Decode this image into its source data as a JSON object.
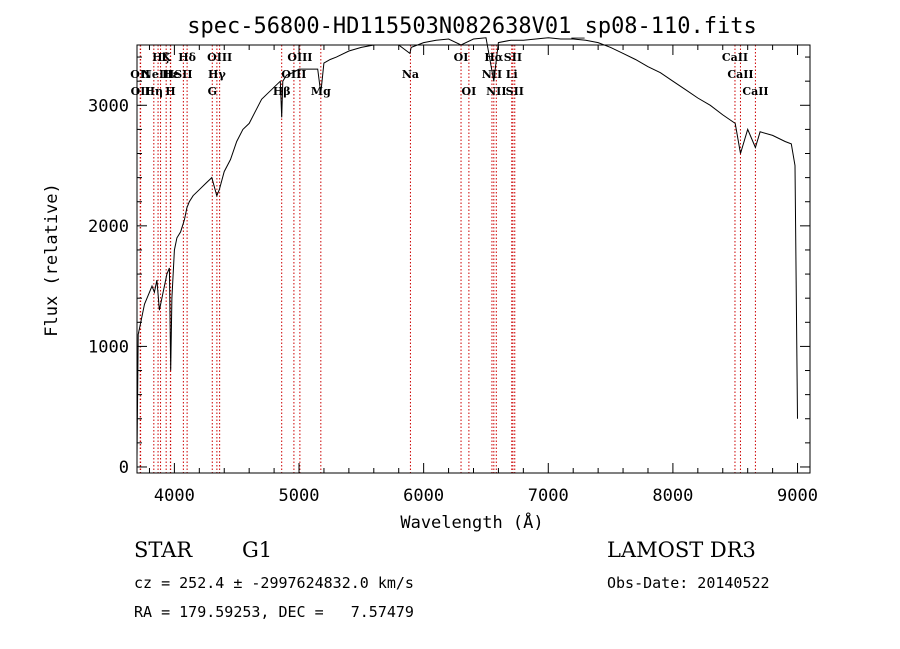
{
  "chart_data": {
    "type": "line",
    "title": "spec-56800-HD115503N082638V01_sp08-110.fits",
    "xlabel": "Wavelength (Å)",
    "ylabel": "Flux (relative)",
    "xlim": [
      3700,
      9100
    ],
    "ylim": [
      -50,
      3500
    ],
    "x_ticks": [
      4000,
      5000,
      6000,
      7000,
      8000,
      9000
    ],
    "y_ticks": [
      0,
      1000,
      2000,
      3000
    ],
    "grid": false,
    "line_color": "#000000",
    "marker_color": "#cc0000",
    "series": [
      {
        "x": [
          3700,
          3710,
          3720,
          3740,
          3760,
          3780,
          3800,
          3820,
          3840,
          3860,
          3880,
          3900,
          3920,
          3940,
          3960,
          3970,
          3980,
          4000,
          4020,
          4050,
          4080,
          4100,
          4120,
          4150,
          4200,
          4250,
          4300,
          4340,
          4360,
          4400,
          4450,
          4500,
          4550,
          4600,
          4650,
          4700,
          4750,
          4800,
          4850,
          4861,
          4870,
          4900,
          4950,
          5000,
          5050,
          5100,
          5150,
          5175,
          5200,
          5250,
          5300,
          5400,
          5500,
          5600,
          5700,
          5800,
          5890,
          5900,
          6000,
          6100,
          6200,
          6300,
          6400,
          6500,
          6563,
          6600,
          6700,
          6800,
          6900,
          7000,
          7100,
          7200,
          7300,
          7400,
          7500,
          7600,
          7700,
          7800,
          7900,
          8000,
          8100,
          8200,
          8300,
          8400,
          8500,
          8542,
          8600,
          8662,
          8700,
          8800,
          8900,
          8950,
          8980,
          9000
        ],
        "y": [
          80,
          1100,
          1150,
          1250,
          1350,
          1400,
          1450,
          1500,
          1450,
          1550,
          1300,
          1400,
          1500,
          1600,
          1650,
          800,
          1400,
          1800,
          1900,
          1950,
          2050,
          2150,
          2200,
          2250,
          2300,
          2350,
          2400,
          2250,
          2300,
          2450,
          2550,
          2700,
          2800,
          2850,
          2950,
          3050,
          3100,
          3150,
          3200,
          2900,
          3200,
          3250,
          3270,
          3300,
          3300,
          3300,
          3300,
          3100,
          3350,
          3380,
          3400,
          3450,
          3480,
          3500,
          3500,
          3500,
          3430,
          3480,
          3520,
          3540,
          3550,
          3500,
          3550,
          3560,
          3200,
          3520,
          3540,
          3540,
          3550,
          3560,
          3550,
          3550,
          3540,
          3520,
          3480,
          3430,
          3380,
          3320,
          3270,
          3200,
          3130,
          3060,
          3000,
          2920,
          2850,
          2600,
          2800,
          2650,
          2780,
          2750,
          2700,
          2680,
          2500,
          400
        ]
      }
    ],
    "line_markers": [
      {
        "wavelength": 3726,
        "label": "OII",
        "row": 1
      },
      {
        "wavelength": 3729,
        "label": "OII",
        "row": 2
      },
      {
        "wavelength": 3835,
        "label": "Hη",
        "row": 2
      },
      {
        "wavelength": 3869,
        "label": "NeIII",
        "row": 1
      },
      {
        "wavelength": 3889,
        "label": "Hζ",
        "row": 0
      },
      {
        "wavelength": 3934,
        "label": "K",
        "row": 0
      },
      {
        "wavelength": 3968,
        "label": "H",
        "row": 2
      },
      {
        "wavelength": 3970,
        "label": "Hε",
        "row": 1
      },
      {
        "wavelength": 4072,
        "label": "SII",
        "row": 1
      },
      {
        "wavelength": 4102,
        "label": "Hδ",
        "row": 0
      },
      {
        "wavelength": 4304,
        "label": "G",
        "row": 2
      },
      {
        "wavelength": 4341,
        "label": "Hγ",
        "row": 1
      },
      {
        "wavelength": 4363,
        "label": "OIII",
        "row": 0
      },
      {
        "wavelength": 4861,
        "label": "Hβ",
        "row": 2
      },
      {
        "wavelength": 4959,
        "label": "OIII",
        "row": 1
      },
      {
        "wavelength": 5007,
        "label": "OIII",
        "row": 0
      },
      {
        "wavelength": 5175,
        "label": "Mg",
        "row": 2
      },
      {
        "wavelength": 5894,
        "label": "Na",
        "row": 1
      },
      {
        "wavelength": 6300,
        "label": "OI",
        "row": 0
      },
      {
        "wavelength": 6363,
        "label": "OI",
        "row": 2
      },
      {
        "wavelength": 6548,
        "label": "NII",
        "row": 1
      },
      {
        "wavelength": 6563,
        "label": "Hα",
        "row": 0
      },
      {
        "wavelength": 6583,
        "label": "NII",
        "row": 2
      },
      {
        "wavelength": 6707,
        "label": "Li",
        "row": 1
      },
      {
        "wavelength": 6716,
        "label": "SII",
        "row": 0
      },
      {
        "wavelength": 6731,
        "label": "SII",
        "row": 2
      },
      {
        "wavelength": 8498,
        "label": "CaII",
        "row": 0
      },
      {
        "wavelength": 8542,
        "label": "CaII",
        "row": 1
      },
      {
        "wavelength": 8662,
        "label": "CaII",
        "row": 2
      }
    ]
  },
  "info": {
    "class": "STAR",
    "subclass": "G1",
    "cz_line": "cz = 252.4 ± -2997624832.0 km/s",
    "coords_line": "RA = 179.59253, DEC =   7.57479",
    "survey": "LAMOST DR3",
    "obs_date": "Obs-Date: 20140522"
  }
}
